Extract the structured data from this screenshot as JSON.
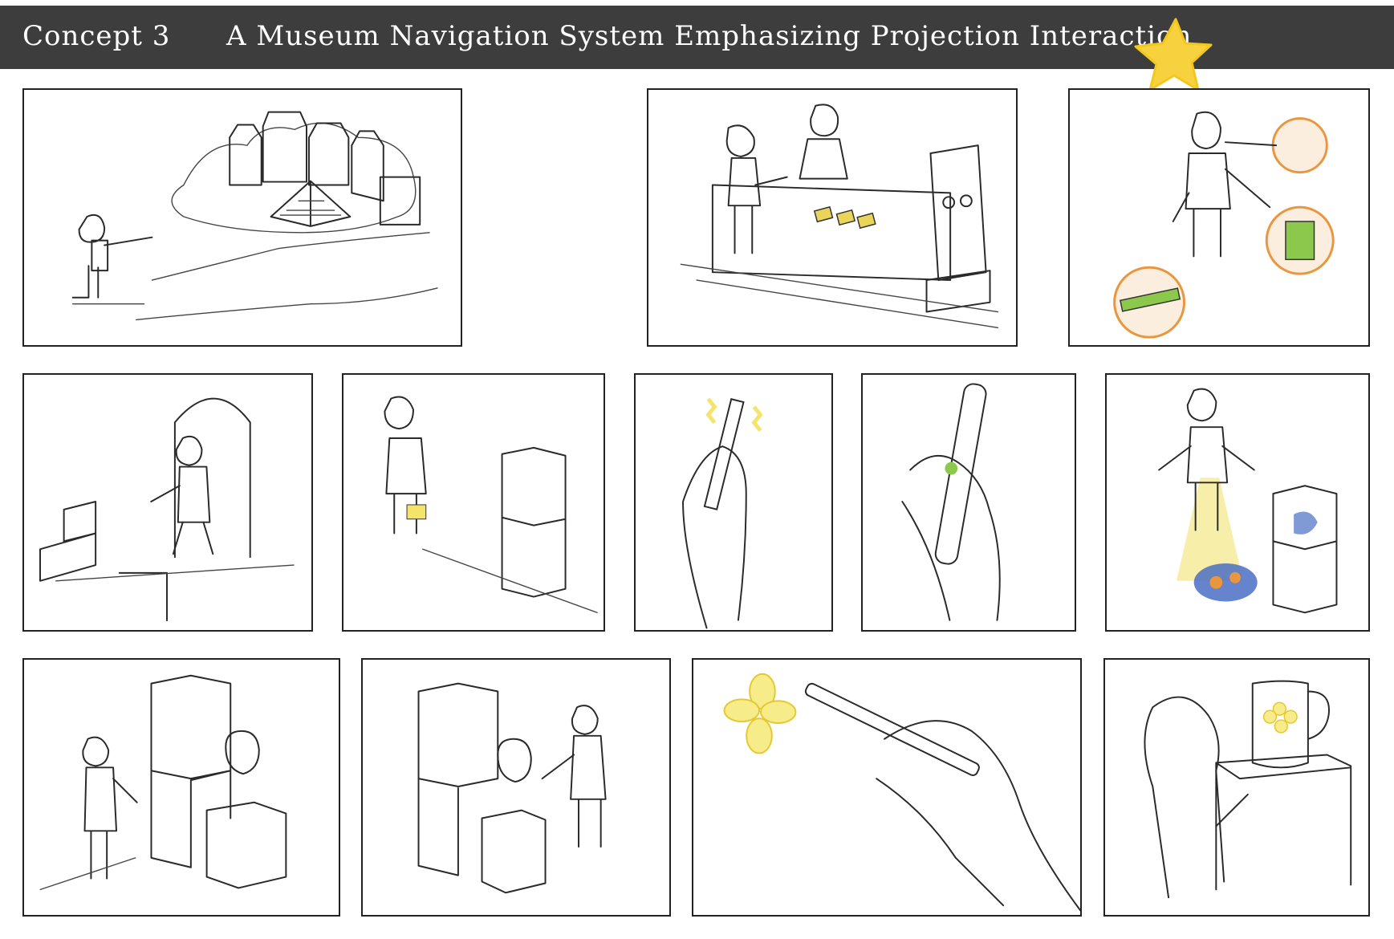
{
  "header": {
    "concept_label": "Concept 3",
    "title": "A Museum Navigation System Emphasizing Projection Interaction"
  },
  "colors": {
    "header_bg": "#3d3d3d",
    "header_text": "#ffffff",
    "star": "#f7d23e",
    "highlight_yellow": "#f5e36b",
    "accent_green": "#8cc84b",
    "accent_orange": "#e9963f",
    "projection_blue": "#4a6fc4"
  },
  "panels": [
    {
      "scene": "museum-exterior"
    },
    {
      "scene": "reception-desk"
    },
    {
      "scene": "device-components"
    },
    {
      "scene": "entering-gallery"
    },
    {
      "scene": "approaching-exhibit"
    },
    {
      "scene": "pen-vibrating"
    },
    {
      "scene": "pen-pressed"
    },
    {
      "scene": "projection-on-floor"
    },
    {
      "scene": "girl-at-exhibit"
    },
    {
      "scene": "girl-pointing-pen"
    },
    {
      "scene": "drawing-flower"
    },
    {
      "scene": "decorated-pitcher"
    }
  ],
  "icons": [
    "star-icon"
  ]
}
